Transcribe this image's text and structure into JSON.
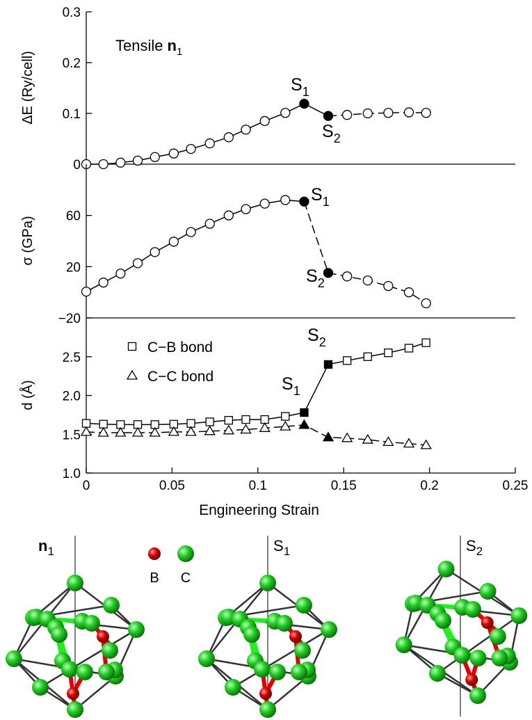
{
  "chart_data": [
    {
      "type": "line",
      "annotation": {
        "text": "Tensile",
        "bold": "n",
        "sub": "1"
      },
      "ylabel": "ΔE (Ry/cell)",
      "xlim": [
        0,
        0.25
      ],
      "ylim": [
        0,
        0.3
      ],
      "yticks": [
        0,
        0.1,
        0.2,
        0.3
      ],
      "x": [
        0,
        0.01,
        0.02,
        0.03,
        0.04,
        0.051,
        0.061,
        0.072,
        0.083,
        0.093,
        0.104,
        0.116,
        0.127,
        0.141,
        0.152,
        0.164,
        0.176,
        0.188,
        0.198
      ],
      "series": [
        {
          "marker": "circle",
          "color": "#000",
          "filled": [
            12,
            13
          ],
          "dashed_after": 13,
          "values": [
            0,
            0,
            0.003,
            0.007,
            0.014,
            0.021,
            0.03,
            0.041,
            0.053,
            0.068,
            0.085,
            0.101,
            0.119,
            0.095,
            0.097,
            0.1,
            0.101,
            0.102,
            0.101
          ]
        }
      ],
      "labels": [
        {
          "text": "S",
          "sub": "1"
        },
        {
          "text": "S",
          "sub": "2"
        }
      ]
    },
    {
      "type": "line",
      "ylabel": "σ (GPa)",
      "xlim": [
        0,
        0.25
      ],
      "ylim": [
        -20,
        100
      ],
      "yticks": [
        {
          "value": -20,
          "label": "−20"
        },
        20,
        60
      ],
      "x": [
        0,
        0.01,
        0.02,
        0.03,
        0.04,
        0.051,
        0.061,
        0.072,
        0.083,
        0.093,
        0.104,
        0.116,
        0.127,
        0.141,
        0.152,
        0.164,
        0.176,
        0.188,
        0.198
      ],
      "series": [
        {
          "marker": "circle",
          "color": "#000",
          "filled": [
            12,
            13
          ],
          "dashed_after": 12,
          "values": [
            0.5,
            7.6,
            14.6,
            22.7,
            31.4,
            39.5,
            47,
            53.5,
            60,
            64.9,
            69.2,
            72,
            70.8,
            15.1,
            12.4,
            9.2,
            4.9,
            0,
            -8.6
          ]
        }
      ],
      "labels": [
        {
          "text": "S",
          "sub": "1"
        },
        {
          "text": "S",
          "sub": "2"
        }
      ]
    },
    {
      "type": "line",
      "ylabel": "d (Å)",
      "xlabel": "Engineering Strain",
      "xlim": [
        0,
        0.25
      ],
      "xticks": [
        0,
        0.05,
        0.1,
        0.15,
        0.2,
        0.25
      ],
      "ylim": [
        1,
        3
      ],
      "yticks": [
        {
          "value": 1,
          "label": "1.0"
        },
        1.5,
        {
          "value": 2,
          "label": "2.0"
        },
        2.5
      ],
      "x": [
        0,
        0.01,
        0.02,
        0.03,
        0.04,
        0.051,
        0.061,
        0.072,
        0.083,
        0.093,
        0.104,
        0.116,
        0.127,
        0.141,
        0.152,
        0.164,
        0.176,
        0.188,
        0.198
      ],
      "series": [
        {
          "name": "C−B bond",
          "marker": "square",
          "color": "#000",
          "filled": [
            12,
            13
          ],
          "values": [
            1.64,
            1.63,
            1.625,
            1.625,
            1.625,
            1.63,
            1.64,
            1.66,
            1.68,
            1.69,
            1.69,
            1.73,
            1.78,
            2.4,
            2.45,
            2.5,
            2.55,
            2.61,
            2.68
          ]
        },
        {
          "name": "C−C bond",
          "marker": "triangle",
          "color": "#000",
          "filled": [
            12,
            13
          ],
          "dashed_after": 0,
          "values": [
            1.53,
            1.52,
            1.52,
            1.52,
            1.52,
            1.53,
            1.53,
            1.54,
            1.55,
            1.56,
            1.58,
            1.6,
            1.62,
            1.46,
            1.45,
            1.43,
            1.4,
            1.38,
            1.36
          ]
        }
      ],
      "labels": [
        {
          "text": "S",
          "sub": "2"
        },
        {
          "text": "S",
          "sub": "1"
        }
      ]
    }
  ],
  "structures": {
    "legend": [
      {
        "label": "B",
        "color": "#d40000"
      },
      {
        "label": "C",
        "color": "#22cc22"
      }
    ],
    "panels": [
      {
        "text": "n",
        "sub": "1",
        "bold": true
      },
      {
        "text": "S",
        "sub": "1"
      },
      {
        "text": "S",
        "sub": "2"
      }
    ]
  }
}
